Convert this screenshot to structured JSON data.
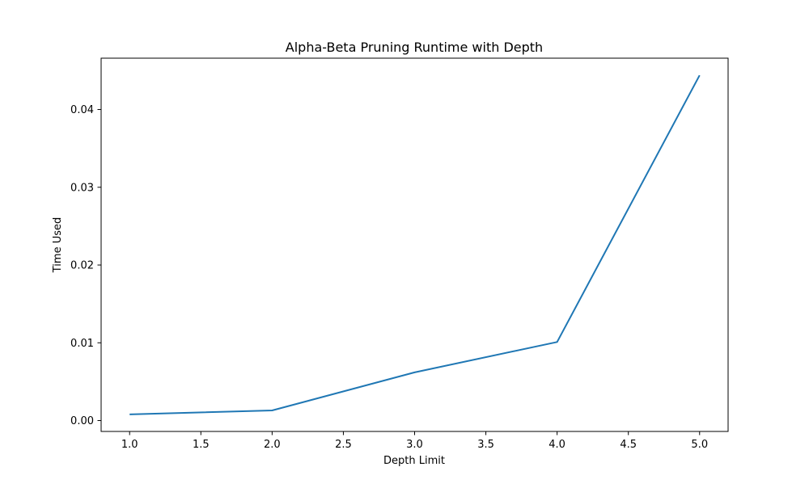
{
  "chart_data": {
    "type": "line",
    "title": "Alpha-Beta Pruning Runtime with Depth",
    "xlabel": "Depth Limit",
    "ylabel": "Time Used",
    "xlim": [
      0.8,
      5.2
    ],
    "ylim": [
      -0.0014,
      0.0466
    ],
    "grid": false,
    "x_ticks": [
      1.0,
      1.5,
      2.0,
      2.5,
      3.0,
      3.5,
      4.0,
      4.5,
      5.0
    ],
    "x_tick_labels": [
      "1.0",
      "1.5",
      "2.0",
      "2.5",
      "3.0",
      "3.5",
      "4.0",
      "4.5",
      "5.0"
    ],
    "y_ticks": [
      0.0,
      0.01,
      0.02,
      0.03,
      0.04
    ],
    "y_tick_labels": [
      "0.00",
      "0.01",
      "0.02",
      "0.03",
      "0.04"
    ],
    "series": [
      {
        "name": "Time Used",
        "color": "#1f77b4",
        "x": [
          1,
          2,
          3,
          4,
          5
        ],
        "values": [
          0.0008,
          0.0013,
          0.0062,
          0.0101,
          0.0444
        ]
      }
    ]
  }
}
